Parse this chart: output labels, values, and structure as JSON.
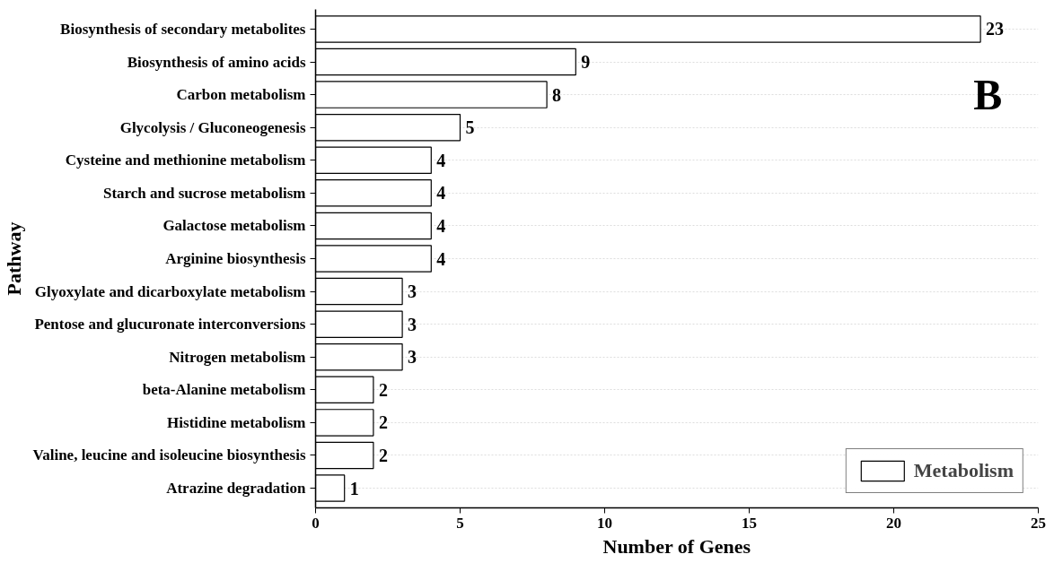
{
  "chart_data": {
    "type": "bar",
    "orientation": "horizontal",
    "xlabel": "Number of Genes",
    "ylabel": "Pathway",
    "categories": [
      "Biosynthesis of secondary metabolites",
      "Biosynthesis of amino acids",
      "Carbon metabolism",
      "Glycolysis / Gluconeogenesis",
      "Cysteine and methionine metabolism",
      "Starch and sucrose metabolism",
      "Galactose metabolism",
      "Arginine biosynthesis",
      "Glyoxylate and dicarboxylate metabolism",
      "Pentose and glucuronate interconversions",
      "Nitrogen metabolism",
      "beta-Alanine metabolism",
      "Histidine metabolism",
      "Valine, leucine and isoleucine biosynthesis",
      "Atrazine degradation"
    ],
    "series": [
      {
        "name": "Metabolism",
        "color": "#ffffff",
        "values": [
          23,
          9,
          8,
          5,
          4,
          4,
          4,
          4,
          3,
          3,
          3,
          2,
          2,
          2,
          1
        ]
      }
    ],
    "xlim": [
      0,
      25
    ],
    "xticks": [
      0,
      5,
      10,
      15,
      20,
      25
    ],
    "grid": "y",
    "legend": "bottom right",
    "data_labels": true,
    "annotations": [
      "B"
    ]
  }
}
